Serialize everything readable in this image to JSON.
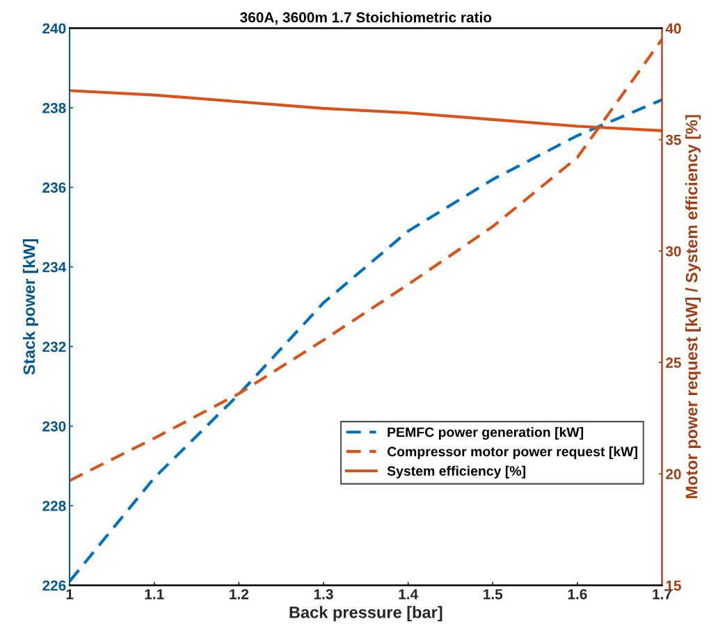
{
  "chart_data": {
    "type": "line",
    "title": "360A, 3600m 1.7 Stoichiometric ratio",
    "xlabel": "Back pressure [bar]",
    "ylabel": "Stack power [kW]",
    "y2label": "Motor power request [kW] / System efficiency [%]",
    "x": [
      1.0,
      1.1,
      1.2,
      1.3,
      1.4,
      1.5,
      1.6,
      1.7
    ],
    "series": [
      {
        "name": "PEMFC power generation [kW]",
        "color": "#0072bd",
        "line_style": "dashed",
        "values": [
          226.1,
          228.7,
          230.8,
          233.1,
          234.9,
          236.2,
          237.3,
          238.2
        ]
      },
      {
        "name": "Compressor motor power request [kW]",
        "color": "#d95319",
        "line_style": "dashed",
        "axis": "y2",
        "values": [
          19.7,
          21.6,
          23.6,
          26.0,
          28.5,
          31.1,
          34.2,
          39.5
        ]
      },
      {
        "name": "System efficiency [%]",
        "color": "#d95319",
        "line_style": "solid",
        "axis": "y2",
        "values": [
          37.2,
          37.0,
          36.7,
          36.4,
          36.2,
          35.9,
          35.6,
          35.4
        ]
      }
    ],
    "xlim": [
      1,
      1.7
    ],
    "xticks": [
      1,
      1.1,
      1.2,
      1.3,
      1.4,
      1.5,
      1.6,
      1.7
    ],
    "ylim": [
      226,
      240
    ],
    "yticks": [
      226,
      228,
      230,
      232,
      234,
      236,
      238,
      240
    ],
    "y2lim": [
      15,
      40
    ],
    "y2ticks": [
      15,
      20,
      25,
      30,
      35,
      40
    ],
    "legend": "bottom right",
    "grid": false,
    "marker": "none"
  }
}
